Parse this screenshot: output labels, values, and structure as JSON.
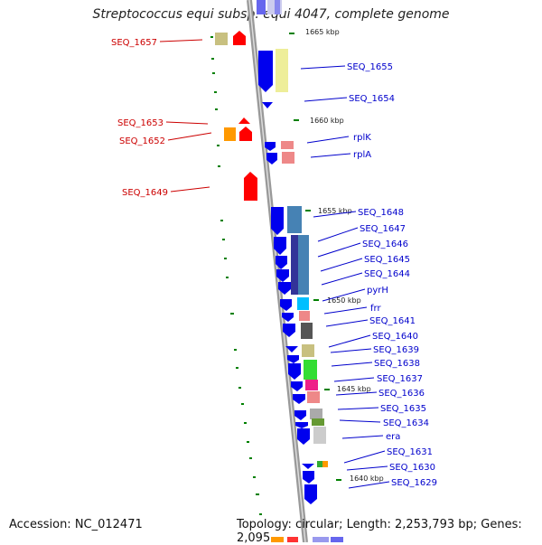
{
  "title": "Streptococcus equi subsp. equi 4047, complete genome",
  "footer": {
    "accession": "Accession: NC_012471",
    "summary": "Topology: circular; Length: 2,253,793 bp; Genes: 2,095"
  },
  "colors": {
    "forward_label": "#cc0000",
    "reverse_label": "#0000cc",
    "backbone": "#999999",
    "tick": "#008000",
    "forward_gene": "#ff0000",
    "reverse_gene": "#0000ee"
  },
  "scale_labels": [
    "1665 kbp",
    "1660 kbp",
    "1655 kbp",
    "1650 kbp",
    "1645 kbp",
    "1640 kbp"
  ],
  "forward_labels": [
    "SEQ_1657",
    "SEQ_1653",
    "SEQ_1652",
    "SEQ_1649"
  ],
  "reverse_labels": [
    "SEQ_1655",
    "SEQ_1654",
    "rplK",
    "rplA",
    "SEQ_1648",
    "SEQ_1647",
    "SEQ_1646",
    "SEQ_1645",
    "SEQ_1644",
    "pyrH",
    "frr",
    "SEQ_1641",
    "SEQ_1640",
    "SEQ_1639",
    "SEQ_1638",
    "SEQ_1637",
    "SEQ_1636",
    "SEQ_1635",
    "SEQ_1634",
    "era",
    "SEQ_1631",
    "SEQ_1630",
    "SEQ_1629"
  ]
}
